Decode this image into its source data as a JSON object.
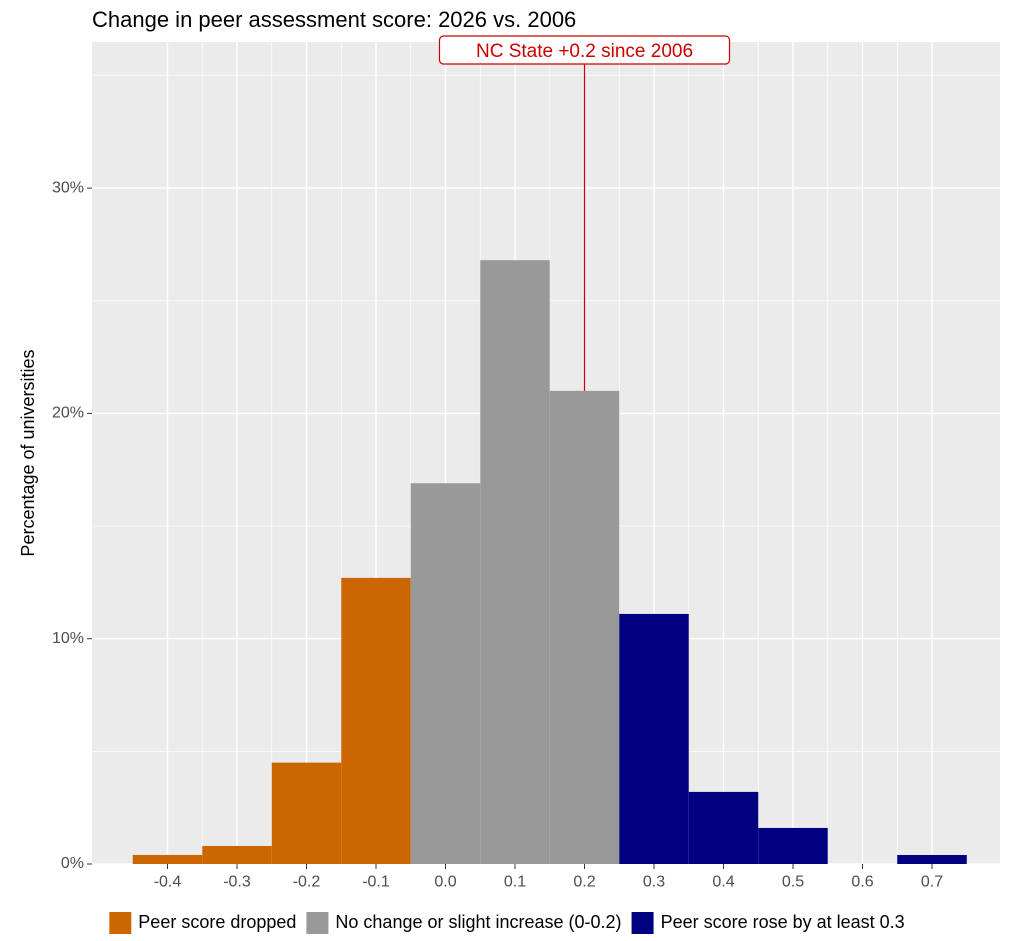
{
  "chart_data": {
    "type": "bar",
    "title": "Change in peer assessment score: 2026 vs. 2006",
    "xlabel": "",
    "ylabel": "Percentage of universities",
    "xlim": [
      -0.55,
      0.85
    ],
    "ylim": [
      0,
      36
    ],
    "grid": true,
    "x_ticks": [
      -0.4,
      -0.3,
      -0.2,
      -0.1,
      0.0,
      0.1,
      0.2,
      0.3,
      0.4,
      0.5,
      0.6,
      0.7
    ],
    "x_tick_labels": [
      "-0.4",
      "-0.3",
      "-0.2",
      "-0.1",
      "0.0",
      "0.1",
      "0.2",
      "0.3",
      "0.4",
      "0.5",
      "0.6",
      "0.7"
    ],
    "y_ticks": [
      0,
      10,
      20,
      30
    ],
    "y_tick_labels": [
      "0%",
      "10%",
      "20%",
      "30%"
    ],
    "bin_width": 0.1,
    "bins": [
      {
        "x": -0.4,
        "value": 0.4,
        "group": "dropped"
      },
      {
        "x": -0.3,
        "value": 0.8,
        "group": "dropped"
      },
      {
        "x": -0.2,
        "value": 4.5,
        "group": "dropped"
      },
      {
        "x": -0.1,
        "value": 12.7,
        "group": "dropped"
      },
      {
        "x": 0.0,
        "value": 16.9,
        "group": "no_change"
      },
      {
        "x": 0.1,
        "value": 26.8,
        "group": "no_change"
      },
      {
        "x": 0.2,
        "value": 21.0,
        "group": "no_change"
      },
      {
        "x": 0.3,
        "value": 11.1,
        "group": "rose"
      },
      {
        "x": 0.4,
        "value": 3.2,
        "group": "rose"
      },
      {
        "x": 0.5,
        "value": 1.6,
        "group": "rose"
      },
      {
        "x": 0.7,
        "value": 0.4,
        "group": "rose"
      }
    ],
    "series": [
      {
        "key": "dropped",
        "name": "Peer score dropped",
        "color": "#cc6600"
      },
      {
        "key": "no_change",
        "name": "No change or slight increase (0-0.2)",
        "color": "#999999"
      },
      {
        "key": "rose",
        "name": "Peer score rose by at least 0.3",
        "color": "#000080"
      }
    ],
    "legend_position": "bottom",
    "annotation": {
      "text": "NC State +0.2 since 2006",
      "x": 0.2,
      "color": "#cc0000"
    },
    "panel_background": "#ebebeb",
    "grid_color": "#ffffff"
  }
}
